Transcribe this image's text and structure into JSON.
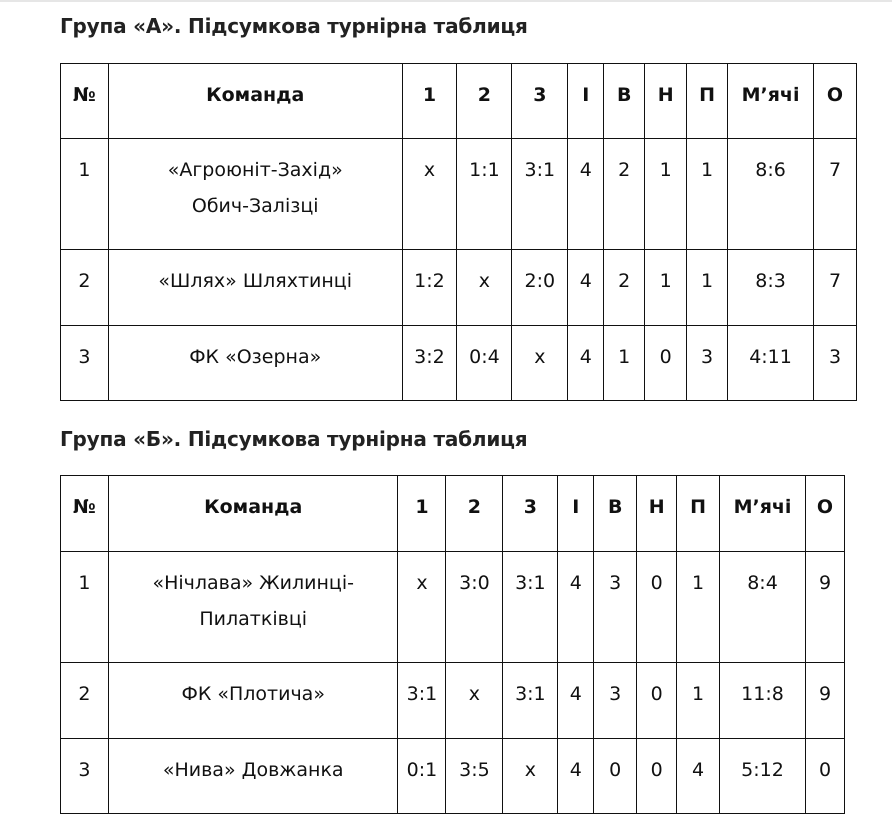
{
  "groups": [
    {
      "title": "Група «А». Підсумкова турнірна таблиця",
      "headers": [
        "№",
        "Команда",
        "1",
        "2",
        "3",
        "І",
        "В",
        "Н",
        "П",
        "М’ячі",
        "О"
      ],
      "rows": [
        [
          "1",
          "«Агроюніт-Захід» Обич-Залізці",
          "x",
          "1:1",
          "3:1",
          "4",
          "2",
          "1",
          "1",
          "8:6",
          "7"
        ],
        [
          "2",
          "«Шлях» Шляхтинці",
          "1:2",
          "x",
          "2:0",
          "4",
          "2",
          "1",
          "1",
          "8:3",
          "7"
        ],
        [
          "3",
          "ФК «Озерна»",
          "3:2",
          "0:4",
          "x",
          "4",
          "1",
          "0",
          "3",
          "4:11",
          "3"
        ]
      ]
    },
    {
      "title": "Група «Б». Підсумкова турнірна таблиця",
      "headers": [
        "№",
        "Команда",
        "1",
        "2",
        "3",
        "І",
        "В",
        "Н",
        "П",
        "М’ячі",
        "О"
      ],
      "rows": [
        [
          "1",
          "«Нічлава» Жилинці-Пилатківці",
          "x",
          "3:0",
          "3:1",
          "4",
          "3",
          "0",
          "1",
          "8:4",
          "9"
        ],
        [
          "2",
          "ФК «Плотича»",
          "3:1",
          "x",
          "3:1",
          "4",
          "3",
          "0",
          "1",
          "11:8",
          "9"
        ],
        [
          "3",
          "«Нива» Довжанка",
          "0:1",
          "3:5",
          "x",
          "4",
          "0",
          "0",
          "4",
          "5:12",
          "0"
        ]
      ]
    }
  ]
}
